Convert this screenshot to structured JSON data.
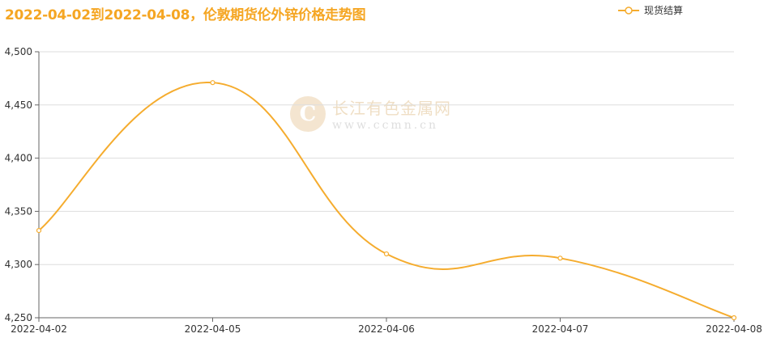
{
  "title": "2022-04-02到2022-04-08，伦敦期货伦外锌价格走势图",
  "legend": {
    "label": "现货结算",
    "color": "#f5ac2e"
  },
  "watermark": {
    "name": "长江有色金属网",
    "url": "www.ccmn.cn",
    "logo_letter": "C"
  },
  "chart_data": {
    "type": "line",
    "x": [
      "2022-04-02",
      "2022-04-05",
      "2022-04-06",
      "2022-04-07",
      "2022-04-08"
    ],
    "series": [
      {
        "name": "现货结算",
        "values": [
          4332,
          4471,
          4310,
          4306,
          4250
        ],
        "color": "#f5ac2e"
      }
    ],
    "ylim": [
      4250,
      4500
    ],
    "yticks": [
      4250,
      4300,
      4350,
      4400,
      4450,
      4500
    ],
    "ytick_labels": [
      "4,250",
      "4,300",
      "4,350",
      "4,400",
      "4,450",
      "4,500"
    ],
    "grid": true,
    "smooth": true
  }
}
